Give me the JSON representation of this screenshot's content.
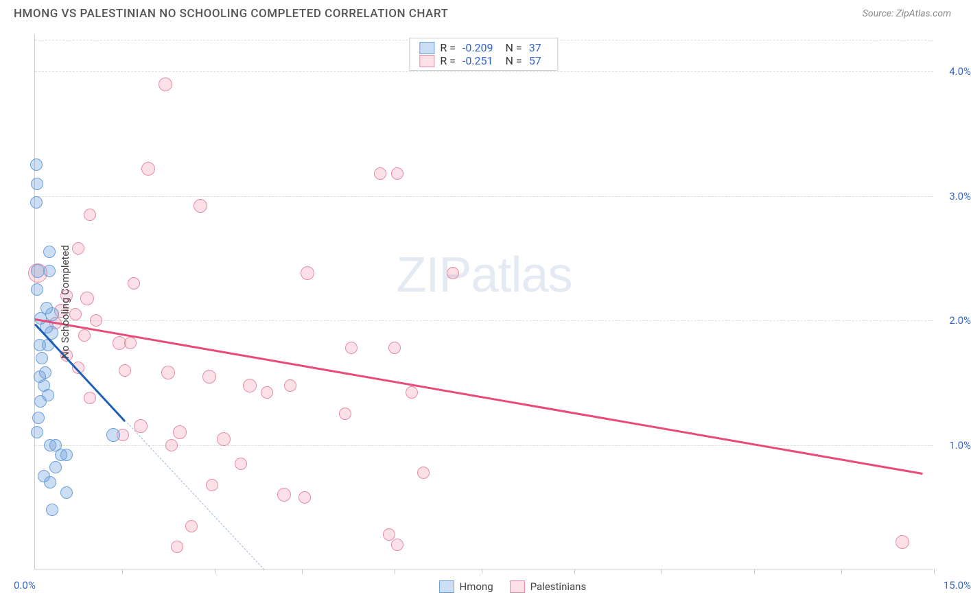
{
  "title": "HMONG VS PALESTINIAN NO SCHOOLING COMPLETED CORRELATION CHART",
  "source": "Source: ZipAtlas.com",
  "watermark": "ZIPatlas",
  "chart": {
    "type": "scatter",
    "yaxis_title": "No Schooling Completed",
    "xlim": [
      0,
      15.5
    ],
    "ylim": [
      0,
      4.3
    ],
    "xlabel_min": "0.0%",
    "xlabel_max": "15.0%",
    "xtick_positions": [
      1.5,
      3.1,
      4.6,
      6.2,
      7.7,
      9.3,
      10.8,
      12.4,
      13.9,
      15.5
    ],
    "ygrid": [
      {
        "y": 1.0,
        "label": "1.0%"
      },
      {
        "y": 2.0,
        "label": "2.0%"
      },
      {
        "y": 3.0,
        "label": "3.0%"
      },
      {
        "y": 4.0,
        "label": "4.0%"
      }
    ],
    "colors": {
      "hmong_fill": "rgba(110,160,220,0.35)",
      "hmong_stroke": "#6b9fd8",
      "pal_fill": "rgba(240,130,160,0.25)",
      "pal_stroke": "#e88ba5",
      "hmong_trend": "#1e5fb4",
      "pal_trend": "#e94b78",
      "hmong_dash": "#9bb8d9",
      "grid": "#dddddd",
      "axis": "#cccccc",
      "tick_text": "#3366cc"
    },
    "marker_radius": 9,
    "series": {
      "hmong": {
        "label": "Hmong",
        "R": "-0.209",
        "N": "37",
        "trend": {
          "x1": 0.0,
          "y1": 1.98,
          "x2": 1.55,
          "y2": 1.2
        },
        "trend_dash": {
          "x1": 1.55,
          "y1": 1.2,
          "x2": 3.95,
          "y2": 0.0
        },
        "points": [
          {
            "x": 0.02,
            "y": 3.25,
            "r": 9
          },
          {
            "x": 0.03,
            "y": 3.1,
            "r": 9
          },
          {
            "x": 0.02,
            "y": 2.95,
            "r": 9
          },
          {
            "x": 0.05,
            "y": 2.4,
            "r": 10
          },
          {
            "x": 0.03,
            "y": 2.25,
            "r": 9
          },
          {
            "x": 0.25,
            "y": 2.55,
            "r": 9
          },
          {
            "x": 0.25,
            "y": 2.4,
            "r": 9
          },
          {
            "x": 0.2,
            "y": 2.1,
            "r": 9
          },
          {
            "x": 0.3,
            "y": 2.05,
            "r": 10
          },
          {
            "x": 0.1,
            "y": 2.02,
            "r": 9
          },
          {
            "x": 0.2,
            "y": 1.95,
            "r": 10
          },
          {
            "x": 0.28,
            "y": 1.9,
            "r": 10
          },
          {
            "x": 0.22,
            "y": 1.8,
            "r": 9
          },
          {
            "x": 0.08,
            "y": 1.8,
            "r": 9
          },
          {
            "x": 0.12,
            "y": 1.7,
            "r": 9
          },
          {
            "x": 0.18,
            "y": 1.58,
            "r": 9
          },
          {
            "x": 0.08,
            "y": 1.55,
            "r": 9
          },
          {
            "x": 0.15,
            "y": 1.48,
            "r": 9
          },
          {
            "x": 0.22,
            "y": 1.4,
            "r": 9
          },
          {
            "x": 0.1,
            "y": 1.35,
            "r": 9
          },
          {
            "x": 0.06,
            "y": 1.22,
            "r": 9
          },
          {
            "x": 0.04,
            "y": 1.1,
            "r": 9
          },
          {
            "x": 0.26,
            "y": 1.0,
            "r": 9
          },
          {
            "x": 0.35,
            "y": 1.0,
            "r": 9
          },
          {
            "x": 0.45,
            "y": 0.92,
            "r": 9
          },
          {
            "x": 0.55,
            "y": 0.92,
            "r": 9
          },
          {
            "x": 0.35,
            "y": 0.82,
            "r": 9
          },
          {
            "x": 0.15,
            "y": 0.75,
            "r": 9
          },
          {
            "x": 0.26,
            "y": 0.7,
            "r": 9
          },
          {
            "x": 0.55,
            "y": 0.62,
            "r": 9
          },
          {
            "x": 0.3,
            "y": 0.48,
            "r": 9
          },
          {
            "x": 1.35,
            "y": 1.08,
            "r": 10
          }
        ]
      },
      "palestinians": {
        "label": "Palestinians",
        "R": "-0.251",
        "N": "57",
        "trend": {
          "x1": 0.0,
          "y1": 2.02,
          "x2": 15.3,
          "y2": 0.78
        },
        "points": [
          {
            "x": 2.25,
            "y": 3.9,
            "r": 10
          },
          {
            "x": 1.95,
            "y": 3.22,
            "r": 10
          },
          {
            "x": 5.95,
            "y": 3.18,
            "r": 9
          },
          {
            "x": 6.25,
            "y": 3.18,
            "r": 9
          },
          {
            "x": 2.85,
            "y": 2.92,
            "r": 10
          },
          {
            "x": 0.95,
            "y": 2.85,
            "r": 9
          },
          {
            "x": 0.05,
            "y": 2.38,
            "r": 14
          },
          {
            "x": 0.75,
            "y": 2.58,
            "r": 9
          },
          {
            "x": 4.7,
            "y": 2.38,
            "r": 10
          },
          {
            "x": 7.2,
            "y": 2.38,
            "r": 9
          },
          {
            "x": 1.7,
            "y": 2.3,
            "r": 9
          },
          {
            "x": 0.55,
            "y": 2.2,
            "r": 9
          },
          {
            "x": 0.9,
            "y": 2.18,
            "r": 10
          },
          {
            "x": 0.45,
            "y": 2.08,
            "r": 10
          },
          {
            "x": 0.7,
            "y": 2.05,
            "r": 9
          },
          {
            "x": 0.35,
            "y": 1.98,
            "r": 9
          },
          {
            "x": 1.05,
            "y": 2.0,
            "r": 9
          },
          {
            "x": 0.85,
            "y": 1.88,
            "r": 9
          },
          {
            "x": 1.45,
            "y": 1.82,
            "r": 10
          },
          {
            "x": 1.65,
            "y": 1.82,
            "r": 9
          },
          {
            "x": 5.45,
            "y": 1.78,
            "r": 9
          },
          {
            "x": 6.2,
            "y": 1.78,
            "r": 9
          },
          {
            "x": 0.55,
            "y": 1.72,
            "r": 9
          },
          {
            "x": 0.75,
            "y": 1.62,
            "r": 9
          },
          {
            "x": 1.55,
            "y": 1.6,
            "r": 9
          },
          {
            "x": 2.3,
            "y": 1.58,
            "r": 10
          },
          {
            "x": 3.0,
            "y": 1.55,
            "r": 10
          },
          {
            "x": 3.7,
            "y": 1.48,
            "r": 10
          },
          {
            "x": 4.4,
            "y": 1.48,
            "r": 9
          },
          {
            "x": 4.0,
            "y": 1.42,
            "r": 9
          },
          {
            "x": 6.5,
            "y": 1.42,
            "r": 9
          },
          {
            "x": 0.95,
            "y": 1.38,
            "r": 9
          },
          {
            "x": 5.35,
            "y": 1.25,
            "r": 9
          },
          {
            "x": 1.82,
            "y": 1.15,
            "r": 10
          },
          {
            "x": 2.5,
            "y": 1.1,
            "r": 10
          },
          {
            "x": 3.25,
            "y": 1.05,
            "r": 10
          },
          {
            "x": 2.35,
            "y": 1.0,
            "r": 9
          },
          {
            "x": 1.52,
            "y": 1.08,
            "r": 9
          },
          {
            "x": 3.55,
            "y": 0.85,
            "r": 9
          },
          {
            "x": 6.7,
            "y": 0.78,
            "r": 9
          },
          {
            "x": 3.05,
            "y": 0.68,
            "r": 9
          },
          {
            "x": 4.3,
            "y": 0.6,
            "r": 10
          },
          {
            "x": 4.65,
            "y": 0.58,
            "r": 9
          },
          {
            "x": 2.7,
            "y": 0.35,
            "r": 9
          },
          {
            "x": 6.1,
            "y": 0.28,
            "r": 9
          },
          {
            "x": 6.25,
            "y": 0.2,
            "r": 9
          },
          {
            "x": 2.45,
            "y": 0.18,
            "r": 9
          },
          {
            "x": 14.95,
            "y": 0.22,
            "r": 10
          }
        ]
      }
    }
  }
}
